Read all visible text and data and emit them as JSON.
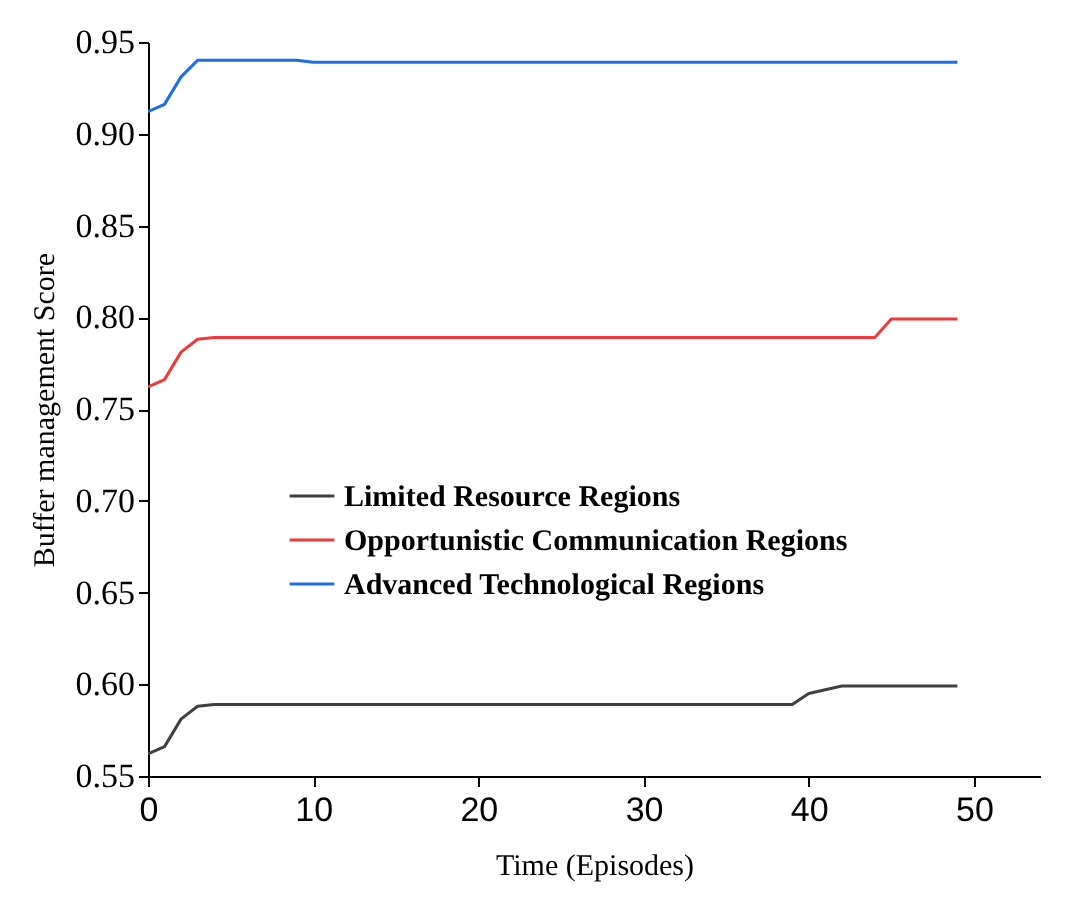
{
  "chart_data": {
    "type": "line",
    "xlabel": "Time (Episodes)",
    "ylabel": "Buffer management Score",
    "xlim": [
      0,
      54
    ],
    "xticks": [
      0,
      10,
      20,
      30,
      40,
      50
    ],
    "ylim": [
      0.55,
      0.95
    ],
    "yticks": [
      0.55,
      {
        "value": 0.6,
        "label": "0.60"
      },
      0.65,
      {
        "value": 0.7,
        "label": "0.70"
      },
      0.75,
      {
        "value": 0.8,
        "label": "0.80"
      },
      0.85,
      {
        "value": 0.9,
        "label": "0.90"
      },
      0.95
    ],
    "grid": false,
    "legend": "left",
    "marker": "none",
    "line_style": "solid",
    "series": [
      {
        "name": "Limited Resource Regions",
        "color": "#404040",
        "x": [
          0,
          1,
          2,
          3,
          4,
          9,
          10,
          20,
          33,
          39,
          40,
          41,
          42,
          46,
          49
        ],
        "values": [
          0.562,
          0.566,
          0.581,
          0.588,
          0.589,
          0.589,
          0.589,
          0.589,
          0.589,
          0.589,
          0.595,
          0.597,
          0.599,
          0.599,
          0.599
        ]
      },
      {
        "name": "Opportunistic Communication Regions",
        "color": "#f03a3a",
        "x": [
          0,
          1,
          2,
          3,
          4,
          9,
          10,
          20,
          30,
          40,
          44,
          45,
          49
        ],
        "values": [
          0.762,
          0.766,
          0.781,
          0.788,
          0.789,
          0.789,
          0.789,
          0.789,
          0.789,
          0.789,
          0.789,
          0.799,
          0.799
        ]
      },
      {
        "name": "Advanced Technological  Regions",
        "color": "#1a6fe8",
        "x": [
          0,
          1,
          2,
          3,
          6,
          8,
          9,
          10,
          17,
          30,
          45,
          49
        ],
        "values": [
          0.912,
          0.916,
          0.931,
          0.94,
          0.94,
          0.94,
          0.94,
          0.939,
          0.939,
          0.939,
          0.939,
          0.939
        ]
      }
    ]
  }
}
